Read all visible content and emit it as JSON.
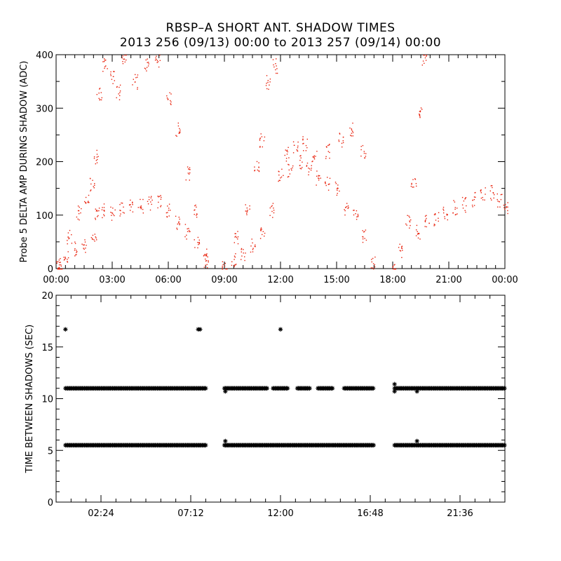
{
  "header": {
    "title_line1": "RBSP–A SHORT ANT. SHADOW TIMES",
    "title_line2": "2013 256 (09/13) 00:00 to 2013 257 (09/14) 00:00"
  },
  "colors": {
    "top_series": "#e8200a",
    "bottom_series": "#000000",
    "axes": "#000000"
  },
  "chart_data": [
    {
      "type": "scatter",
      "ylabel": "Probe 5 DELTA AMP DURING SHADOW (ADC)",
      "xlabel": "",
      "xlim_hours": [
        0,
        24
      ],
      "ylim": [
        0,
        400
      ],
      "x_tick_labels": [
        "00:00",
        "03:00",
        "06:00",
        "09:00",
        "12:00",
        "15:00",
        "18:00",
        "21:00",
        "00:00"
      ],
      "y_tick_labels": [
        "0",
        "100",
        "200",
        "300",
        "400"
      ],
      "series": [
        {
          "marker": "dot",
          "color": "#e8200a",
          "points": [
            [
              0.1,
              3
            ],
            [
              0.5,
              22
            ],
            [
              1.0,
              38
            ],
            [
              1.5,
              45
            ],
            [
              2.0,
              55
            ],
            [
              2.2,
              100
            ],
            [
              2.5,
              110
            ],
            [
              3.0,
              105
            ],
            [
              3.5,
              110
            ],
            [
              4.0,
              120
            ],
            [
              4.5,
              118
            ],
            [
              5.0,
              122
            ],
            [
              5.5,
              125
            ],
            [
              6.0,
              110
            ],
            [
              6.5,
              85
            ],
            [
              7.0,
              70
            ],
            [
              7.5,
              50
            ],
            [
              8.0,
              15
            ],
            [
              0.2,
              8
            ],
            [
              0.7,
              60
            ],
            [
              1.2,
              105
            ],
            [
              1.6,
              125
            ],
            [
              1.9,
              160
            ],
            [
              2.1,
              210
            ],
            [
              2.3,
              330
            ],
            [
              2.6,
              380
            ],
            [
              3.0,
              360
            ],
            [
              3.3,
              330
            ],
            [
              3.6,
              395
            ],
            [
              4.2,
              350
            ],
            [
              4.8,
              380
            ],
            [
              5.4,
              390
            ],
            [
              6.0,
              320
            ],
            [
              6.5,
              260
            ],
            [
              7.0,
              180
            ],
            [
              7.5,
              110
            ],
            [
              8.0,
              25
            ],
            [
              9.0,
              3
            ],
            [
              9.5,
              18
            ],
            [
              10.0,
              30
            ],
            [
              10.5,
              45
            ],
            [
              11.0,
              70
            ],
            [
              11.5,
              110
            ],
            [
              12.0,
              175
            ],
            [
              12.5,
              185
            ],
            [
              13.0,
              200
            ],
            [
              13.5,
              185
            ],
            [
              14.0,
              170
            ],
            [
              14.5,
              160
            ],
            [
              15.0,
              150
            ],
            [
              15.5,
              115
            ],
            [
              16.0,
              100
            ],
            [
              16.5,
              60
            ],
            [
              16.9,
              10
            ],
            [
              9.6,
              60
            ],
            [
              10.2,
              110
            ],
            [
              10.7,
              190
            ],
            [
              11.0,
              240
            ],
            [
              11.3,
              350
            ],
            [
              11.7,
              380
            ],
            [
              12.3,
              215
            ],
            [
              12.8,
              230
            ],
            [
              13.3,
              235
            ],
            [
              13.8,
              210
            ],
            [
              14.5,
              220
            ],
            [
              15.2,
              240
            ],
            [
              15.8,
              260
            ],
            [
              16.4,
              220
            ],
            [
              18.0,
              3
            ],
            [
              18.4,
              35
            ],
            [
              18.8,
              90
            ],
            [
              19.1,
              160
            ],
            [
              19.4,
              290
            ],
            [
              19.7,
              395
            ],
            [
              19.3,
              70
            ],
            [
              19.8,
              90
            ],
            [
              20.3,
              95
            ],
            [
              20.8,
              105
            ],
            [
              21.3,
              115
            ],
            [
              21.8,
              120
            ],
            [
              22.3,
              130
            ],
            [
              22.8,
              140
            ],
            [
              23.3,
              143
            ],
            [
              23.7,
              130
            ],
            [
              24.0,
              115
            ]
          ]
        }
      ]
    },
    {
      "type": "scatter",
      "ylabel": "TIME BETWEEN SHADOWS (SEC)",
      "xlabel": "",
      "xlim_hours": [
        0,
        24
      ],
      "ylim": [
        0,
        20
      ],
      "x_tick_labels": [
        "02:24",
        "07:12",
        "12:00",
        "16:48",
        "21:36"
      ],
      "y_tick_labels": [
        "0",
        "5",
        "10",
        "15",
        "20"
      ],
      "series": [
        {
          "name": "",
          "marker": "asterisk",
          "color": "#000000",
          "bands": [
            {
              "y": 5.5,
              "ranges": [
                [
                  0.5,
                  8.0
                ],
                [
                  9.0,
                  17.0
                ],
                [
                  18.1,
                  24.0
                ]
              ]
            },
            {
              "y": 11.0,
              "ranges": [
                [
                  0.5,
                  8.0
                ],
                [
                  9.0,
                  11.3
                ],
                [
                  11.6,
                  12.4
                ],
                [
                  12.9,
                  13.6
                ],
                [
                  14.0,
                  14.8
                ],
                [
                  15.4,
                  17.0
                ],
                [
                  18.1,
                  24.0
                ]
              ]
            }
          ],
          "outliers": [
            [
              0.5,
              16.7
            ],
            [
              7.6,
              16.7
            ],
            [
              7.7,
              16.7
            ],
            [
              9.05,
              10.7
            ],
            [
              9.05,
              5.9
            ],
            [
              12.0,
              16.7
            ],
            [
              18.1,
              11.4
            ],
            [
              18.1,
              10.7
            ],
            [
              19.3,
              10.7
            ],
            [
              19.3,
              5.9
            ]
          ]
        }
      ]
    }
  ]
}
